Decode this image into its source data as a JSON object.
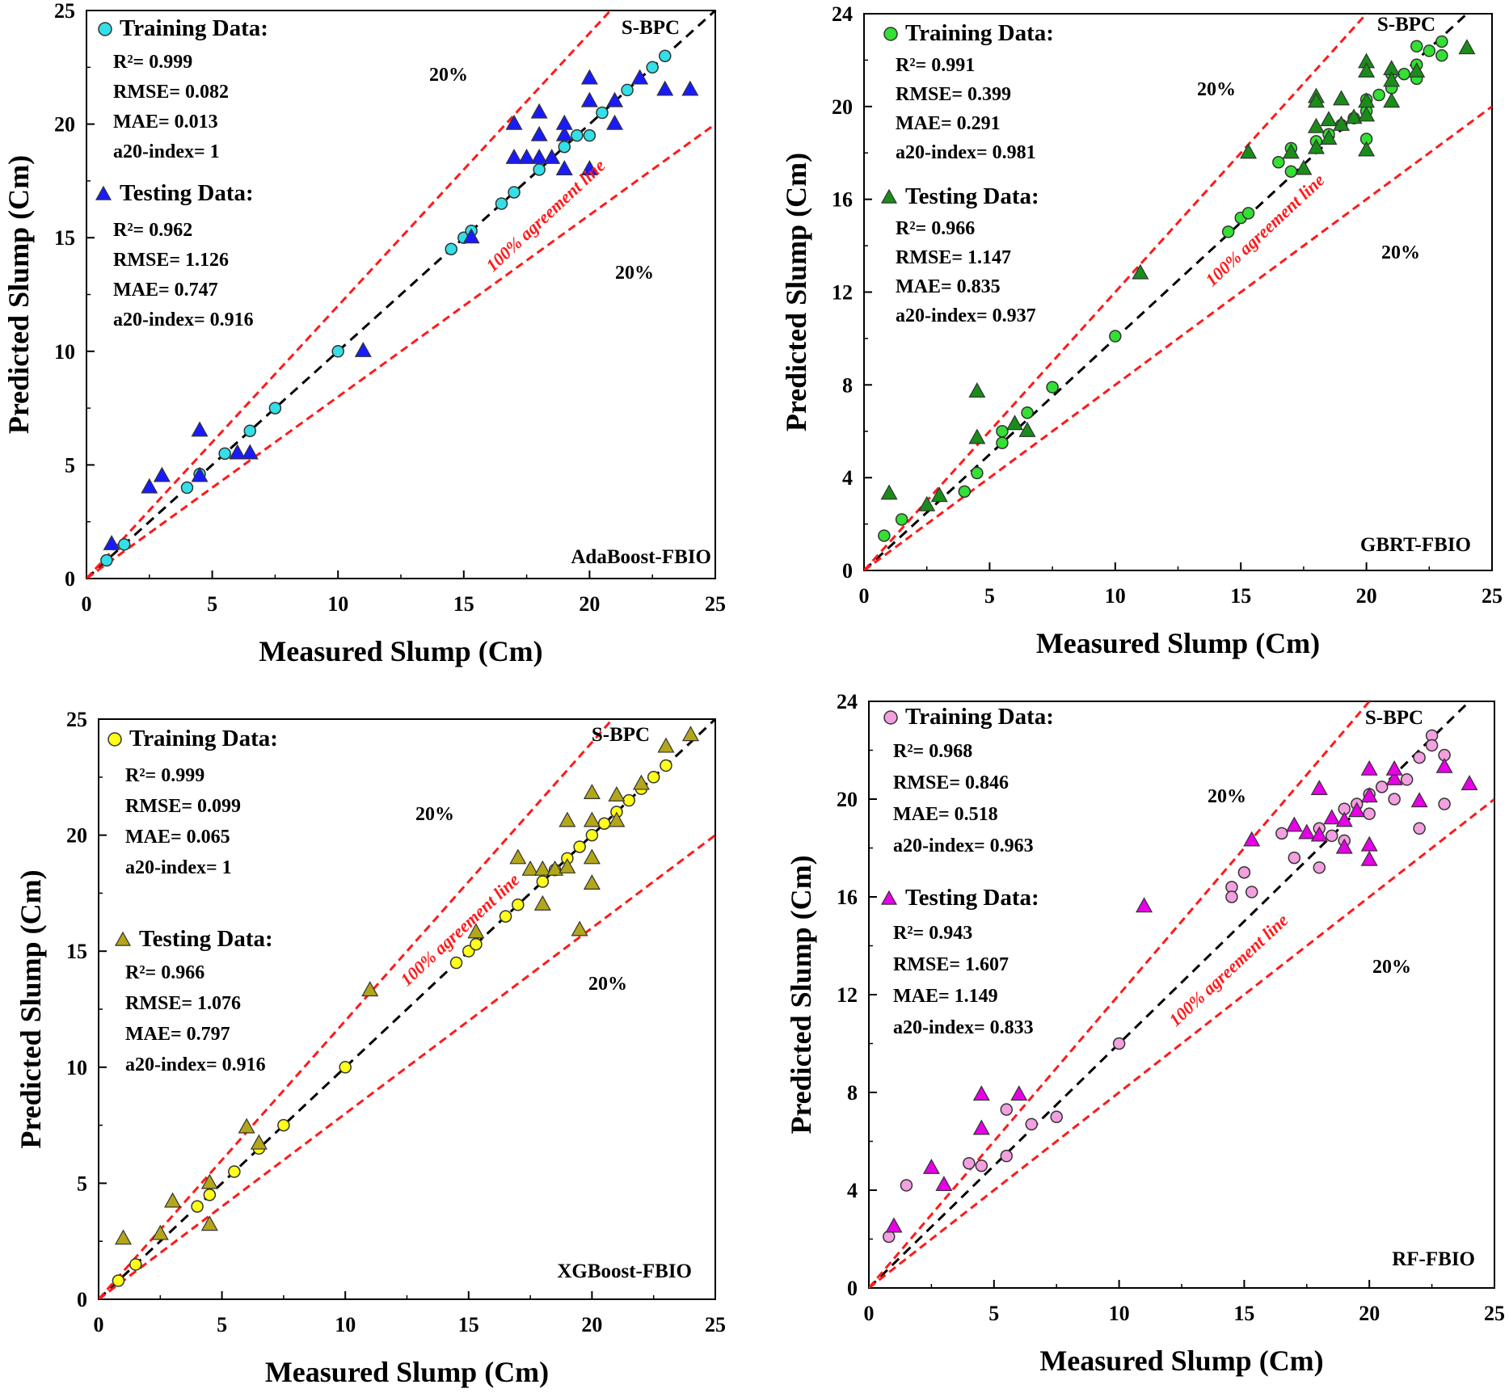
{
  "chart_data": [
    {
      "type": "scatter",
      "model": "AdaBoost-FBIO",
      "dataset_tag": "S-BPC",
      "xlabel": "Measured Slump (Cm)",
      "ylabel": "Predicted Slump (Cm)",
      "xlim": [
        0,
        25
      ],
      "ylim": [
        0,
        25
      ],
      "xticks": [
        0,
        5,
        10,
        15,
        20,
        25
      ],
      "yticks": [
        0,
        5,
        10,
        15,
        20,
        25
      ],
      "lines": {
        "agreement_label": "100% agreement line",
        "upper_band_label": "20%",
        "lower_band_label": "20%"
      },
      "training": {
        "title": "Training Data:",
        "stats": [
          "R²= 0.999",
          "RMSE= 0.082",
          "MAE= 0.013",
          "a20-index= 1"
        ],
        "color": "#33e0e8",
        "points": [
          [
            0.8,
            0.8
          ],
          [
            1.5,
            1.5
          ],
          [
            4,
            4
          ],
          [
            4.5,
            4.6
          ],
          [
            5.5,
            5.5
          ],
          [
            6.5,
            6.5
          ],
          [
            7.5,
            7.5
          ],
          [
            10,
            10
          ],
          [
            14.5,
            14.5
          ],
          [
            15,
            15
          ],
          [
            15.3,
            15.3
          ],
          [
            16.5,
            16.5
          ],
          [
            17,
            17
          ],
          [
            18,
            18
          ],
          [
            19,
            19
          ],
          [
            19.5,
            19.5
          ],
          [
            20,
            19.5
          ],
          [
            20.5,
            20.5
          ],
          [
            21.5,
            21.5
          ],
          [
            22.5,
            22.5
          ],
          [
            23,
            23
          ]
        ]
      },
      "testing": {
        "title": "Testing Data:",
        "stats": [
          "R²= 0.962",
          "RMSE= 1.126",
          "MAE= 0.747",
          "a20-index= 0.916"
        ],
        "color": "#1a1aff",
        "points": [
          [
            1,
            1.5
          ],
          [
            2.5,
            4
          ],
          [
            3,
            4.5
          ],
          [
            4.5,
            6.5
          ],
          [
            4.5,
            4.5
          ],
          [
            6,
            5.5
          ],
          [
            6.5,
            5.5
          ],
          [
            11,
            10
          ],
          [
            15.3,
            15
          ],
          [
            17,
            18.5
          ],
          [
            17,
            20
          ],
          [
            17.5,
            18.5
          ],
          [
            18,
            18.5
          ],
          [
            18,
            20.5
          ],
          [
            18,
            19.5
          ],
          [
            18.5,
            18.5
          ],
          [
            19,
            19.5
          ],
          [
            19,
            20
          ],
          [
            19,
            18
          ],
          [
            20,
            22
          ],
          [
            20,
            21
          ],
          [
            20,
            18
          ],
          [
            21,
            21
          ],
          [
            21,
            20
          ],
          [
            22,
            22
          ],
          [
            23,
            21.5
          ],
          [
            24,
            21.5
          ]
        ]
      }
    },
    {
      "type": "scatter",
      "model": "GBRT-FBIO",
      "dataset_tag": "S-BPC",
      "xlabel": "Measured Slump (Cm)",
      "ylabel": "Predicted Slump (Cm)",
      "xlim": [
        0,
        25
      ],
      "ylim": [
        0,
        24
      ],
      "xticks": [
        0,
        5,
        10,
        15,
        20,
        25
      ],
      "yticks": [
        0,
        4,
        8,
        12,
        16,
        20,
        24
      ],
      "lines": {
        "agreement_label": "100% agreement line",
        "upper_band_label": "20%",
        "lower_band_label": "20%"
      },
      "training": {
        "title": "Training Data:",
        "stats": [
          "R²= 0.991",
          "RMSE= 0.399",
          "MAE= 0.291",
          "a20-index= 0.981"
        ],
        "color": "#33e033",
        "points": [
          [
            0.8,
            1.5
          ],
          [
            1.5,
            2.2
          ],
          [
            4,
            3.4
          ],
          [
            4.5,
            4.2
          ],
          [
            5.5,
            5.5
          ],
          [
            5.5,
            6
          ],
          [
            6.5,
            6.8
          ],
          [
            7.5,
            7.9
          ],
          [
            10,
            10.1
          ],
          [
            14.5,
            14.6
          ],
          [
            15,
            15.2
          ],
          [
            15.3,
            15.4
          ],
          [
            16.5,
            17.6
          ],
          [
            17,
            17.2
          ],
          [
            17,
            18.2
          ],
          [
            18,
            18.5
          ],
          [
            18.5,
            18.8
          ],
          [
            19,
            19.2
          ],
          [
            19.5,
            19.5
          ],
          [
            20,
            19.8
          ],
          [
            20,
            20.3
          ],
          [
            20,
            18.6
          ],
          [
            20.5,
            20.5
          ],
          [
            21,
            20.8
          ],
          [
            21.5,
            21.4
          ],
          [
            22,
            21.8
          ],
          [
            22,
            22.6
          ],
          [
            22.5,
            22.4
          ],
          [
            23,
            22.8
          ],
          [
            23,
            22.2
          ],
          [
            21,
            21.4
          ],
          [
            22,
            21.2
          ]
        ]
      },
      "testing": {
        "title": "Testing Data:",
        "stats": [
          "R²= 0.966",
          "RMSE= 1.147",
          "MAE= 0.835",
          "a20-index= 0.937"
        ],
        "color": "#1a8c1a",
        "points": [
          [
            1,
            3.3
          ],
          [
            2.5,
            2.8
          ],
          [
            3,
            3.2
          ],
          [
            4.5,
            7.7
          ],
          [
            4.5,
            5.7
          ],
          [
            6,
            6.3
          ],
          [
            6.5,
            6
          ],
          [
            11,
            12.8
          ],
          [
            15.3,
            18
          ],
          [
            17,
            18
          ],
          [
            17.5,
            17.3
          ],
          [
            18,
            20.4
          ],
          [
            18,
            20.2
          ],
          [
            18,
            19.1
          ],
          [
            18,
            18.2
          ],
          [
            18.5,
            18.6
          ],
          [
            18.5,
            19.4
          ],
          [
            19,
            19.2
          ],
          [
            19,
            20.3
          ],
          [
            19.5,
            19.5
          ],
          [
            20,
            21.9
          ],
          [
            20,
            21.5
          ],
          [
            20,
            20.2
          ],
          [
            20,
            18.1
          ],
          [
            20,
            19.6
          ],
          [
            21,
            21.6
          ],
          [
            21,
            20.2
          ],
          [
            21,
            21.1
          ],
          [
            22,
            21.5
          ],
          [
            24,
            22.5
          ]
        ]
      }
    },
    {
      "type": "scatter",
      "model": "XGBoost-FBIO",
      "dataset_tag": "S-BPC",
      "xlabel": "Measured Slump (Cm)",
      "ylabel": "Predicted Slump (Cm)",
      "xlim": [
        0,
        25
      ],
      "ylim": [
        0,
        25
      ],
      "xticks": [
        0,
        5,
        10,
        15,
        20,
        25
      ],
      "yticks": [
        0,
        5,
        10,
        15,
        20,
        25
      ],
      "lines": {
        "agreement_label": "100% agreement line",
        "upper_band_label": "20%",
        "lower_band_label": "20%"
      },
      "training": {
        "title": "Training Data:",
        "stats": [
          "R²= 0.999",
          "RMSE= 0.099",
          "MAE= 0.065",
          "a20-index=  1"
        ],
        "color": "#ffff1a",
        "points": [
          [
            0.8,
            0.8
          ],
          [
            1.5,
            1.5
          ],
          [
            4,
            4
          ],
          [
            4.5,
            4.5
          ],
          [
            5.5,
            5.5
          ],
          [
            6.5,
            6.5
          ],
          [
            7.5,
            7.5
          ],
          [
            10,
            10
          ],
          [
            14.5,
            14.5
          ],
          [
            15,
            15
          ],
          [
            15.3,
            15.3
          ],
          [
            16.5,
            16.5
          ],
          [
            17,
            17
          ],
          [
            18,
            18
          ],
          [
            18.5,
            18.5
          ],
          [
            19,
            19
          ],
          [
            19.5,
            19.5
          ],
          [
            20,
            20
          ],
          [
            20.5,
            20.5
          ],
          [
            21,
            21
          ],
          [
            21.5,
            21.5
          ],
          [
            22,
            22
          ],
          [
            22.5,
            22.5
          ],
          [
            23,
            23
          ]
        ]
      },
      "testing": {
        "title": "Testing Data:",
        "stats": [
          "R²= 0.966",
          "RMSE= 1.076",
          "MAE= 0.797",
          "a20-index= 0.916"
        ],
        "color": "#b3a619",
        "points": [
          [
            1,
            2.6
          ],
          [
            2.5,
            2.8
          ],
          [
            3,
            4.2
          ],
          [
            4.5,
            5
          ],
          [
            4.5,
            3.2
          ],
          [
            6,
            7.4
          ],
          [
            6.5,
            6.7
          ],
          [
            11,
            13.3
          ],
          [
            15.3,
            15.8
          ],
          [
            17,
            19
          ],
          [
            17.5,
            18.5
          ],
          [
            18,
            18.5
          ],
          [
            18,
            17
          ],
          [
            18.5,
            18.5
          ],
          [
            19,
            20.6
          ],
          [
            19,
            18.6
          ],
          [
            19.5,
            15.9
          ],
          [
            20,
            21.8
          ],
          [
            20,
            20.6
          ],
          [
            20,
            17.9
          ],
          [
            20,
            19
          ],
          [
            21,
            21.7
          ],
          [
            21,
            20.6
          ],
          [
            22,
            22.2
          ],
          [
            23,
            23.8
          ],
          [
            24,
            24.3
          ]
        ]
      }
    },
    {
      "type": "scatter",
      "model": "RF-FBIO",
      "dataset_tag": "S-BPC",
      "xlabel": "Measured Slump (Cm)",
      "ylabel": "Predicted Slump (Cm)",
      "xlim": [
        0,
        25
      ],
      "ylim": [
        0,
        24
      ],
      "xticks": [
        0,
        5,
        10,
        15,
        20,
        25
      ],
      "yticks": [
        0,
        4,
        8,
        12,
        16,
        20,
        24
      ],
      "lines": {
        "agreement_label": "100% agreement line",
        "upper_band_label": "20%",
        "lower_band_label": "20%"
      },
      "training": {
        "title": "Training Data:",
        "stats": [
          "R²= 0.968",
          "RMSE= 0.846",
          "MAE= 0.518",
          "a20-index= 0.963"
        ],
        "color": "#f2a0e0",
        "points": [
          [
            0.8,
            2.1
          ],
          [
            1.5,
            4.2
          ],
          [
            4,
            5.1
          ],
          [
            4.5,
            5
          ],
          [
            5.5,
            7.3
          ],
          [
            5.5,
            5.4
          ],
          [
            6.5,
            6.7
          ],
          [
            7.5,
            7
          ],
          [
            10,
            10
          ],
          [
            14.5,
            16.4
          ],
          [
            14.5,
            16
          ],
          [
            15,
            17
          ],
          [
            15.3,
            16.2
          ],
          [
            16.5,
            18.6
          ],
          [
            17,
            17.6
          ],
          [
            18,
            17.2
          ],
          [
            18,
            18.8
          ],
          [
            18.5,
            18.5
          ],
          [
            19,
            19.6
          ],
          [
            19,
            18.3
          ],
          [
            19.5,
            19.8
          ],
          [
            20,
            19.4
          ],
          [
            20,
            20.2
          ],
          [
            20.5,
            20.5
          ],
          [
            21,
            20
          ],
          [
            21.5,
            20.8
          ],
          [
            22,
            21.7
          ],
          [
            22,
            18.8
          ],
          [
            22.5,
            22.6
          ],
          [
            22.5,
            22.2
          ],
          [
            23,
            21.8
          ],
          [
            23,
            19.8
          ]
        ]
      },
      "testing": {
        "title": "Testing Data:",
        "stats": [
          "R²= 0.943",
          "RMSE= 1.607",
          "MAE= 1.149",
          "a20-index=  0.833"
        ],
        "color": "#e600e6",
        "points": [
          [
            1,
            2.5
          ],
          [
            2.5,
            4.9
          ],
          [
            3,
            4.2
          ],
          [
            4.5,
            7.9
          ],
          [
            4.5,
            6.5
          ],
          [
            6,
            7.9
          ],
          [
            11,
            15.6
          ],
          [
            15.3,
            18.3
          ],
          [
            17,
            18.9
          ],
          [
            17.5,
            18.6
          ],
          [
            18,
            20.4
          ],
          [
            18,
            18.5
          ],
          [
            18.5,
            19.2
          ],
          [
            19,
            18
          ],
          [
            19,
            19.1
          ],
          [
            19.5,
            19.5
          ],
          [
            20,
            21.2
          ],
          [
            20,
            20.1
          ],
          [
            20,
            18.1
          ],
          [
            20,
            17.5
          ],
          [
            21,
            20.8
          ],
          [
            21,
            21.2
          ],
          [
            22,
            19.9
          ],
          [
            23,
            21.3
          ],
          [
            24,
            20.6
          ]
        ]
      }
    }
  ]
}
